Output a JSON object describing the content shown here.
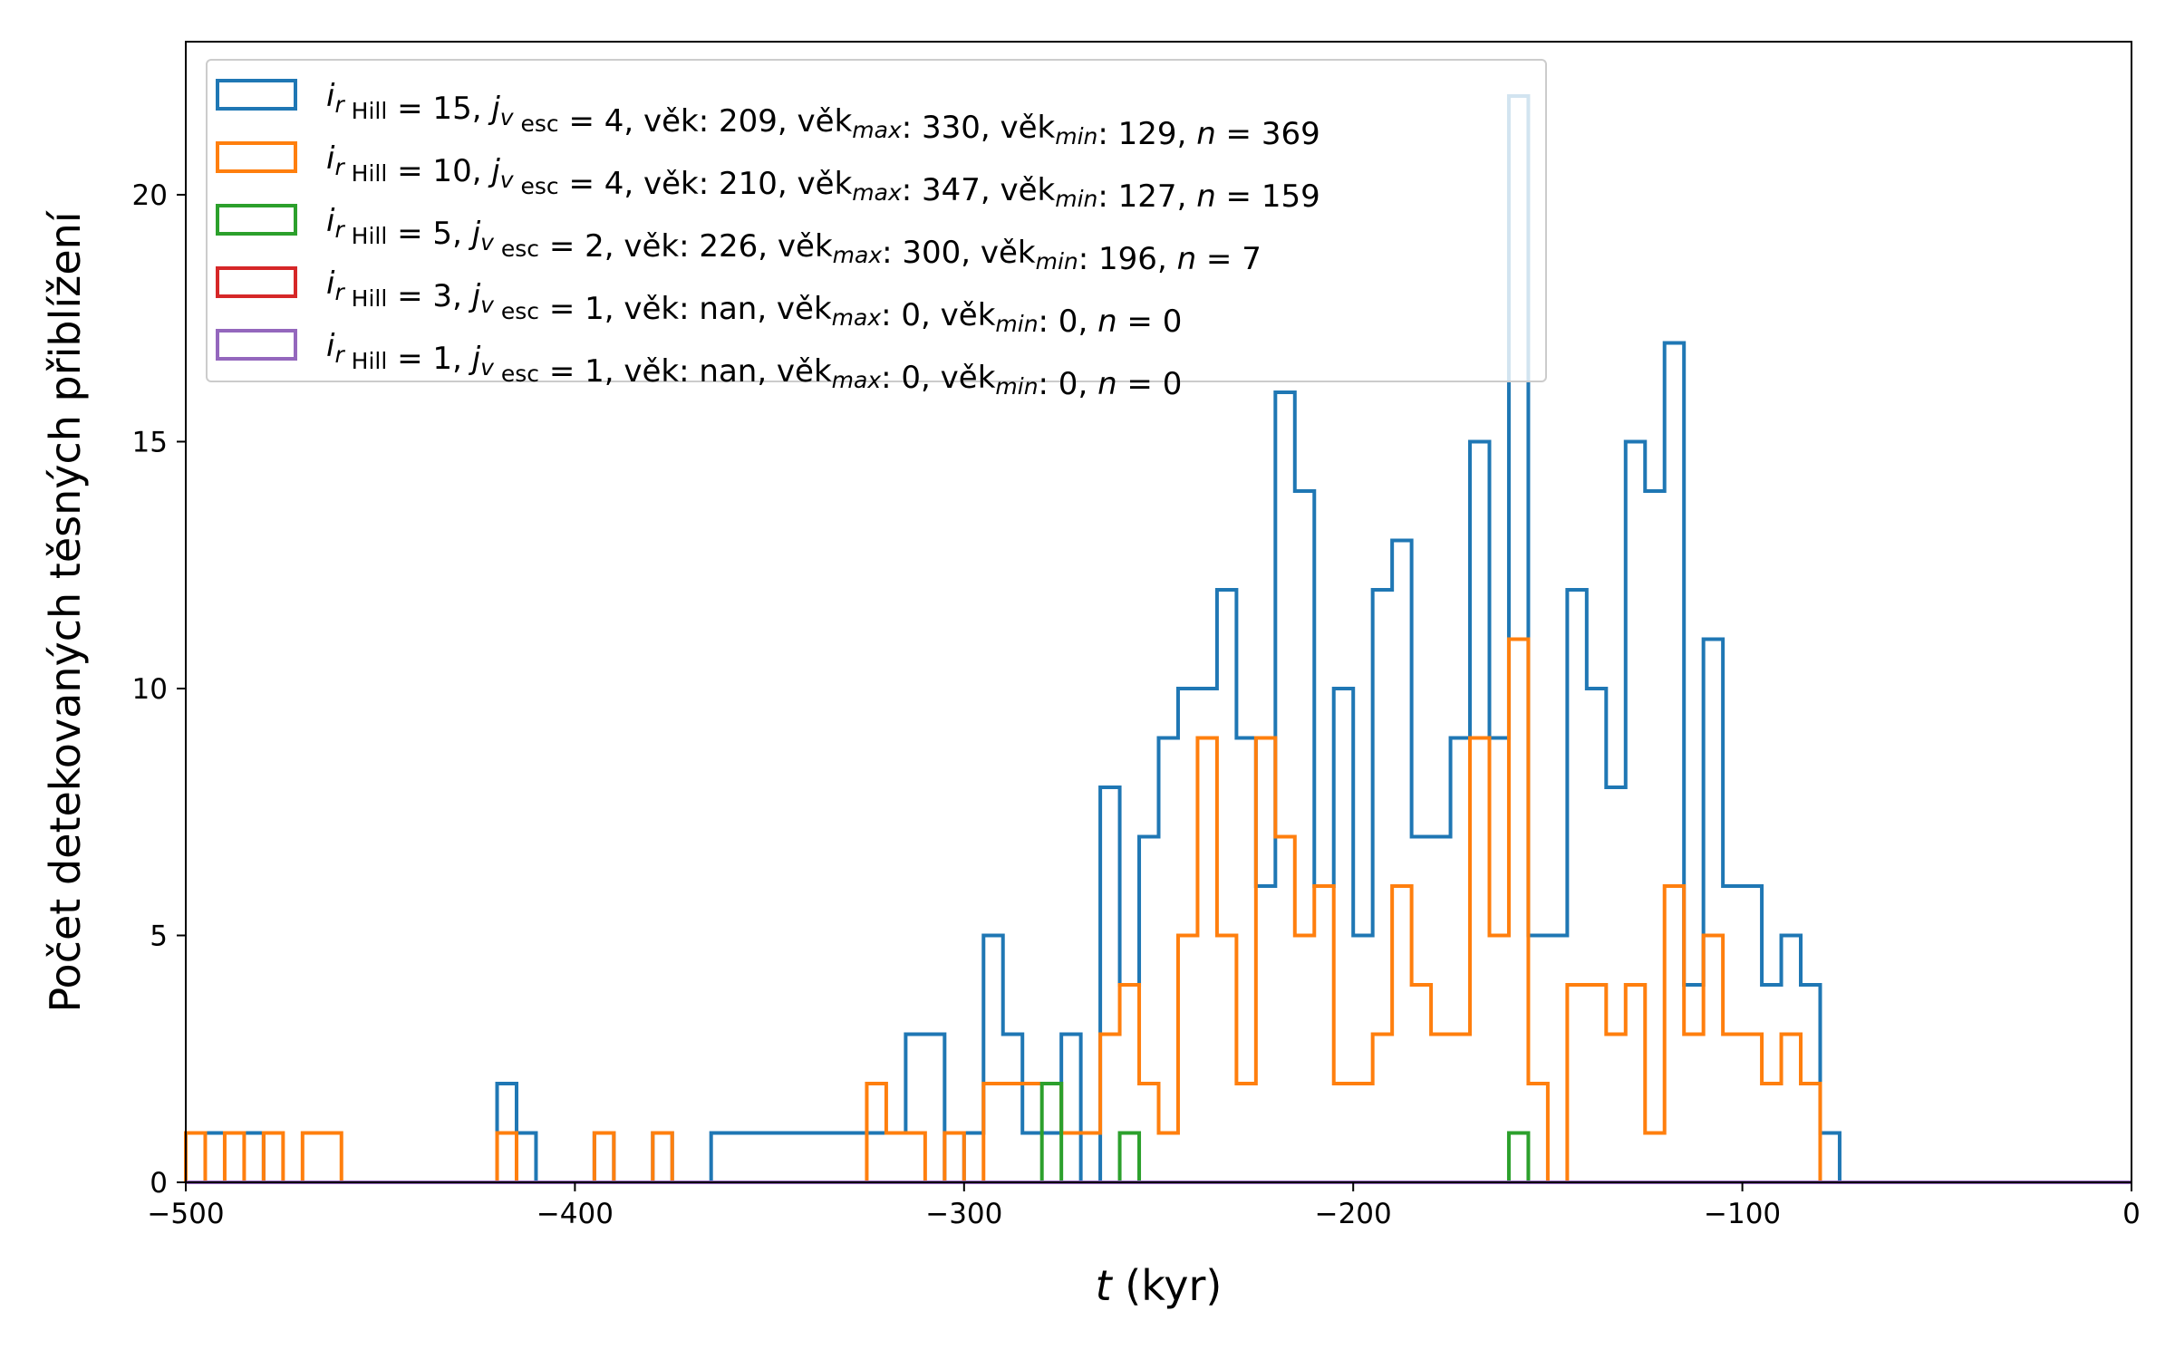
{
  "chart_data": {
    "type": "histogram-step",
    "xlabel_italic": "t",
    "xlabel_rest": " (kyr)",
    "ylabel": "Počet detekovaných těsných přiblížení",
    "xlim": [
      -500,
      0
    ],
    "ylim": [
      0,
      23.1
    ],
    "bin_width": 5,
    "bin_start": -500,
    "xticks": [
      -500,
      -400,
      -300,
      -200,
      -100,
      0
    ],
    "xtick_labels": [
      "−500",
      "−400",
      "−300",
      "−200",
      "−100",
      "0"
    ],
    "yticks": [
      0,
      5,
      10,
      15,
      20
    ],
    "ytick_labels": [
      "0",
      "5",
      "10",
      "15",
      "20"
    ],
    "grid": false,
    "legend_placement": "top-left",
    "series": [
      {
        "name": "iᵣ Hill = 15, jᵥ esc = 4, věk: 209, věkmax: 330, věkmin: 129, n = 369",
        "legend": {
          "i": "15",
          "j": "4",
          "vek": "209",
          "vekmax": "330",
          "vekmin": "129",
          "n": "369"
        },
        "color": "#1f77b4",
        "counts": [
          1,
          1,
          1,
          1,
          0,
          0,
          0,
          0,
          0,
          0,
          0,
          0,
          0,
          0,
          0,
          0,
          2,
          1,
          0,
          0,
          0,
          1,
          0,
          0,
          1,
          0,
          0,
          1,
          1,
          1,
          1,
          1,
          1,
          1,
          1,
          1,
          1,
          3,
          3,
          0,
          1,
          5,
          3,
          1,
          1,
          3,
          0,
          8,
          4,
          7,
          9,
          10,
          10,
          12,
          9,
          6,
          16,
          14,
          6,
          10,
          5,
          12,
          13,
          7,
          7,
          9,
          15,
          9,
          22,
          5,
          5,
          12,
          10,
          8,
          15,
          14,
          17,
          4,
          11,
          6,
          6,
          4,
          5,
          4,
          1,
          0,
          0,
          0,
          0,
          0,
          0,
          0,
          0,
          0,
          0,
          0,
          0,
          0,
          0,
          0
        ]
      },
      {
        "name": "iᵣ Hill = 10, jᵥ esc = 4, věk: 210, věkmax: 347, věkmin: 127, n = 159",
        "legend": {
          "i": "10",
          "j": "4",
          "vek": "210",
          "vekmax": "347",
          "vekmin": "127",
          "n": "159"
        },
        "color": "#ff7f0e",
        "counts": [
          1,
          0,
          1,
          0,
          1,
          0,
          1,
          1,
          0,
          0,
          0,
          0,
          0,
          0,
          0,
          0,
          1,
          0,
          0,
          0,
          0,
          1,
          0,
          0,
          1,
          0,
          0,
          0,
          0,
          0,
          0,
          0,
          0,
          0,
          0,
          2,
          1,
          1,
          0,
          1,
          0,
          2,
          2,
          2,
          2,
          1,
          1,
          3,
          4,
          2,
          1,
          5,
          9,
          5,
          2,
          9,
          7,
          5,
          6,
          2,
          2,
          3,
          6,
          4,
          3,
          3,
          9,
          5,
          11,
          2,
          0,
          4,
          4,
          3,
          4,
          1,
          6,
          3,
          5,
          3,
          3,
          2,
          3,
          2,
          0,
          0,
          0,
          0,
          0,
          0,
          0,
          0,
          0,
          0,
          0,
          0,
          0,
          0,
          0,
          0
        ]
      },
      {
        "name": "iᵣ Hill = 5, jᵥ esc = 2, věk: 226, věkmax: 300, věkmin: 196, n = 7",
        "legend": {
          "i": " 5",
          "j": "2",
          "vek": "226",
          "vekmax": "300",
          "vekmin": "196",
          "n": "7"
        },
        "color": "#2ca02c",
        "counts": [
          0,
          0,
          0,
          0,
          0,
          0,
          0,
          0,
          0,
          0,
          0,
          0,
          0,
          0,
          0,
          0,
          0,
          0,
          0,
          0,
          0,
          0,
          0,
          0,
          0,
          0,
          0,
          0,
          0,
          0,
          0,
          0,
          0,
          0,
          0,
          0,
          0,
          0,
          0,
          0,
          0,
          0,
          0,
          0,
          2,
          0,
          0,
          0,
          1,
          0,
          0,
          0,
          0,
          0,
          0,
          0,
          0,
          0,
          0,
          0,
          0,
          0,
          0,
          0,
          0,
          0,
          0,
          0,
          1,
          0,
          0,
          0,
          0,
          0,
          0,
          0,
          0,
          0,
          0,
          0,
          0,
          0,
          0,
          0,
          0,
          0,
          0,
          0,
          0,
          0,
          0,
          0,
          0,
          0,
          0,
          0,
          0,
          0,
          0,
          0
        ]
      },
      {
        "name": "iᵣ Hill = 3, jᵥ esc = 1, věk: nan, věkmax: 0, věkmin: 0, n = 0",
        "legend": {
          "i": " 3",
          "j": "1",
          "vek": "nan",
          "vekmax": "  0",
          "vekmin": "0",
          "n": "0"
        },
        "color": "#d62728",
        "counts": [
          0,
          0,
          0,
          0,
          0,
          0,
          0,
          0,
          0,
          0,
          0,
          0,
          0,
          0,
          0,
          0,
          0,
          0,
          0,
          0,
          0,
          0,
          0,
          0,
          0,
          0,
          0,
          0,
          0,
          0,
          0,
          0,
          0,
          0,
          0,
          0,
          0,
          0,
          0,
          0,
          0,
          0,
          0,
          0,
          0,
          0,
          0,
          0,
          0,
          0,
          0,
          0,
          0,
          0,
          0,
          0,
          0,
          0,
          0,
          0,
          0,
          0,
          0,
          0,
          0,
          0,
          0,
          0,
          0,
          0,
          0,
          0,
          0,
          0,
          0,
          0,
          0,
          0,
          0,
          0,
          0,
          0,
          0,
          0,
          0,
          0,
          0,
          0,
          0,
          0,
          0,
          0,
          0,
          0,
          0,
          0,
          0,
          0,
          0,
          0
        ]
      },
      {
        "name": "iᵣ Hill = 1, jᵥ esc = 1, věk: nan, věkmax: 0, věkmin: 0, n = 0",
        "legend": {
          "i": " 1",
          "j": "1",
          "vek": "nan",
          "vekmax": "  0",
          "vekmin": "0",
          "n": "0"
        },
        "color": "#9467bd",
        "counts": [
          0,
          0,
          0,
          0,
          0,
          0,
          0,
          0,
          0,
          0,
          0,
          0,
          0,
          0,
          0,
          0,
          0,
          0,
          0,
          0,
          0,
          0,
          0,
          0,
          0,
          0,
          0,
          0,
          0,
          0,
          0,
          0,
          0,
          0,
          0,
          0,
          0,
          0,
          0,
          0,
          0,
          0,
          0,
          0,
          0,
          0,
          0,
          0,
          0,
          0,
          0,
          0,
          0,
          0,
          0,
          0,
          0,
          0,
          0,
          0,
          0,
          0,
          0,
          0,
          0,
          0,
          0,
          0,
          0,
          0,
          0,
          0,
          0,
          0,
          0,
          0,
          0,
          0,
          0,
          0,
          0,
          0,
          0,
          0,
          0,
          0,
          0,
          0,
          0,
          0,
          0,
          0,
          0,
          0,
          0,
          0,
          0,
          0,
          0,
          0
        ]
      }
    ]
  }
}
